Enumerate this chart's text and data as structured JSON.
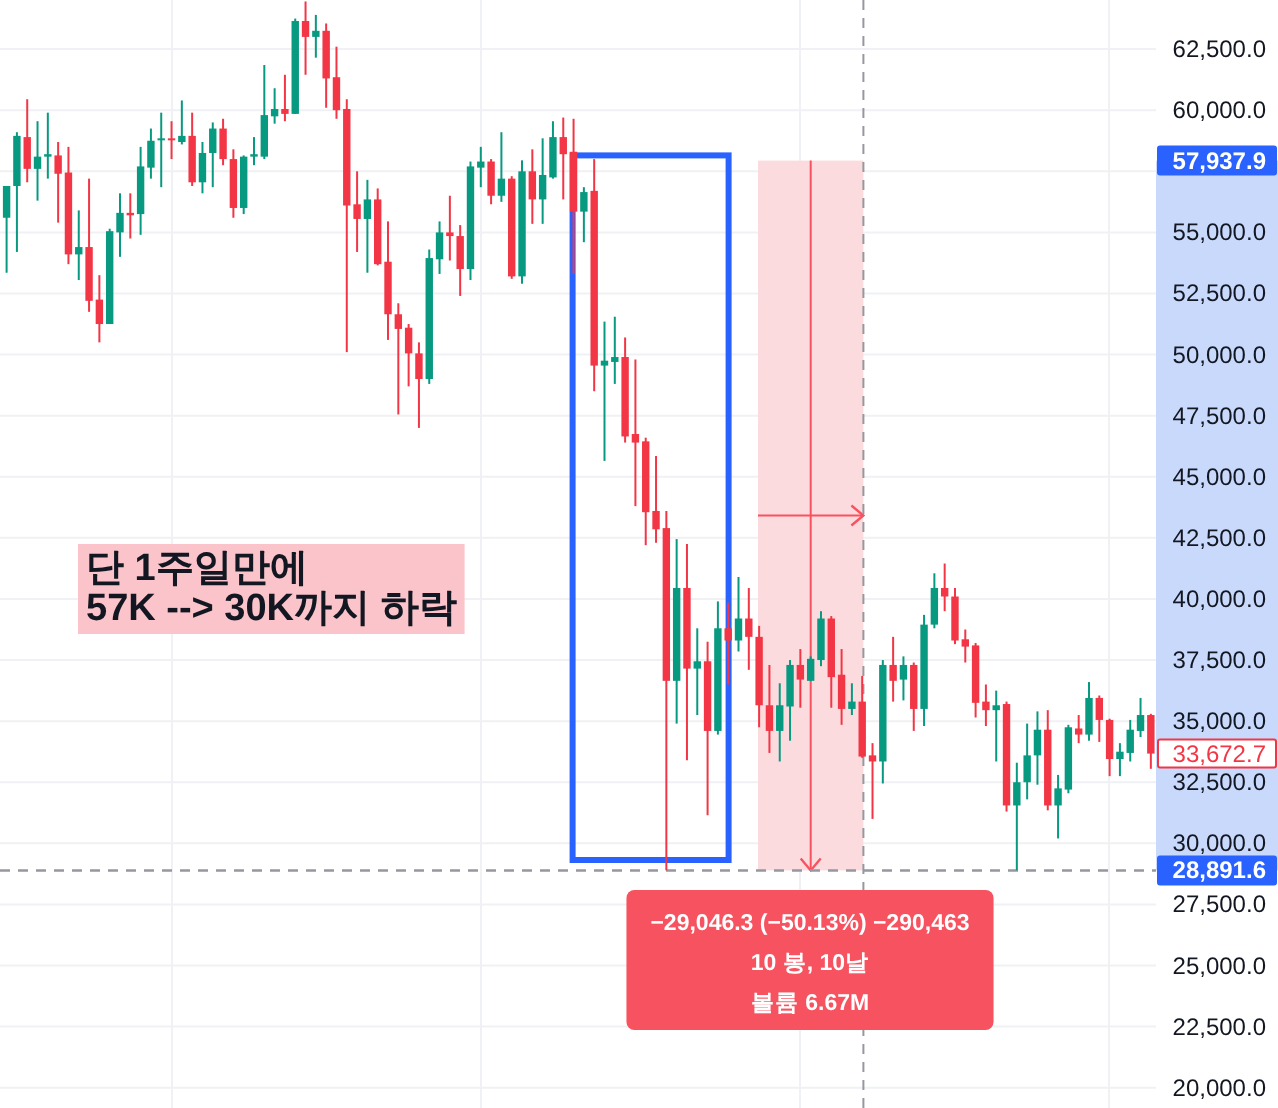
{
  "chart_data": {
    "type": "candlestick",
    "categories": [
      null,
      null,
      null,
      null,
      null,
      null,
      null,
      null,
      null,
      null,
      null,
      null,
      null,
      null,
      null,
      null,
      null,
      null,
      null,
      null,
      null,
      null,
      null,
      null,
      null,
      null,
      null,
      null,
      null,
      null,
      null,
      null,
      null,
      null,
      null,
      null,
      null,
      null,
      null,
      null,
      null,
      null,
      null,
      null,
      null,
      null,
      null,
      null,
      null,
      null,
      null,
      null,
      null,
      null,
      null,
      null,
      null,
      null,
      null,
      null,
      null,
      null,
      null,
      null,
      null,
      null,
      null,
      null,
      null,
      null,
      null,
      null,
      null,
      null,
      null,
      null,
      null,
      null,
      null,
      null,
      null,
      null,
      null,
      null,
      null,
      null,
      null,
      null,
      null,
      null,
      null,
      null,
      null,
      null,
      null,
      null,
      null,
      null,
      null,
      null,
      null,
      null,
      null,
      null,
      null,
      null,
      null,
      null,
      null,
      null,
      null,
      null
    ],
    "ohlc": [
      [
        55600,
        56900,
        53350,
        56900
      ],
      [
        56900,
        59100,
        54200,
        58950
      ],
      [
        58900,
        60450,
        57050,
        57600
      ],
      [
        57600,
        59550,
        56300,
        58100
      ],
      [
        58100,
        59900,
        57200,
        58200
      ],
      [
        58150,
        58700,
        55400,
        57400
      ],
      [
        57450,
        58500,
        53700,
        54100
      ],
      [
        54100,
        55900,
        53050,
        54400
      ],
      [
        54400,
        57200,
        51750,
        52200
      ],
      [
        52250,
        53250,
        50500,
        51250
      ],
      [
        51250,
        55150,
        51250,
        55050
      ],
      [
        55000,
        56600,
        54000,
        55800
      ],
      [
        55800,
        56600,
        54750,
        55700
      ],
      [
        55750,
        58500,
        54900,
        57700
      ],
      [
        57650,
        59250,
        57200,
        58750
      ],
      [
        58800,
        59900,
        56850,
        58850
      ],
      [
        58850,
        59550,
        58000,
        58800
      ],
      [
        58700,
        60400,
        58600,
        58950
      ],
      [
        58950,
        59900,
        56900,
        57050
      ],
      [
        57050,
        58700,
        56600,
        58250
      ],
      [
        58250,
        59500,
        56850,
        59250
      ],
      [
        59250,
        59650,
        57750,
        58000
      ],
      [
        58000,
        58400,
        55600,
        56000
      ],
      [
        56000,
        58150,
        55750,
        58100
      ],
      [
        58100,
        58900,
        57750,
        58200
      ],
      [
        58100,
        61850,
        58000,
        59800
      ],
      [
        59750,
        60900,
        59450,
        60050
      ],
      [
        60050,
        61450,
        59550,
        59850
      ],
      [
        59850,
        63750,
        59850,
        63650
      ],
      [
        63650,
        64450,
        61450,
        63000
      ],
      [
        63000,
        63900,
        62150,
        63250
      ],
      [
        63250,
        63550,
        60100,
        61300
      ],
      [
        61350,
        62600,
        59650,
        60000
      ],
      [
        60050,
        60450,
        50100,
        56100
      ],
      [
        56150,
        57500,
        54200,
        55550
      ],
      [
        55550,
        57150,
        53350,
        56350
      ],
      [
        56350,
        56800,
        53650,
        53700
      ],
      [
        53800,
        55450,
        50600,
        51650
      ],
      [
        51650,
        52100,
        47550,
        51050
      ],
      [
        51100,
        51250,
        48700,
        50050
      ],
      [
        50050,
        50500,
        47000,
        49000
      ],
      [
        49000,
        54300,
        48800,
        53950
      ],
      [
        53900,
        55450,
        53300,
        55000
      ],
      [
        55000,
        56500,
        53850,
        54850
      ],
      [
        54850,
        55300,
        52400,
        53500
      ],
      [
        53500,
        57900,
        53050,
        57700
      ],
      [
        57650,
        58500,
        56850,
        57900
      ],
      [
        57900,
        58000,
        56150,
        56500
      ],
      [
        56500,
        59100,
        56250,
        57200
      ],
      [
        57200,
        57300,
        53100,
        53200
      ],
      [
        53200,
        57950,
        52900,
        57500
      ],
      [
        57500,
        58400,
        55350,
        56350
      ],
      [
        56350,
        58850,
        55350,
        57350
      ],
      [
        57250,
        59550,
        57200,
        58900
      ],
      [
        58900,
        59700,
        56350,
        58200
      ],
      [
        58300,
        59650,
        53300,
        55850
      ],
      [
        55850,
        56850,
        54600,
        56650
      ],
      [
        56700,
        58000,
        48500,
        49550
      ],
      [
        49550,
        51350,
        45650,
        49750
      ],
      [
        49700,
        51550,
        48800,
        49900
      ],
      [
        49900,
        50700,
        46400,
        46650
      ],
      [
        46750,
        49800,
        43800,
        46400
      ],
      [
        46450,
        46600,
        42200,
        43550
      ],
      [
        43600,
        45850,
        42300,
        42850
      ],
      [
        42900,
        43600,
        28900,
        36650
      ],
      [
        36650,
        42450,
        34900,
        40450
      ],
      [
        40450,
        42250,
        33400,
        37150
      ],
      [
        37150,
        38800,
        35250,
        37450
      ],
      [
        37450,
        38250,
        31150,
        34600
      ],
      [
        34600,
        39900,
        34450,
        38800
      ],
      [
        38800,
        39850,
        36500,
        38300
      ],
      [
        38300,
        40900,
        37850,
        39200
      ],
      [
        39200,
        40450,
        37100,
        38450
      ],
      [
        38450,
        38900,
        34750,
        35650
      ],
      [
        35650,
        37300,
        33700,
        34600
      ],
      [
        34600,
        36550,
        33350,
        35650
      ],
      [
        35600,
        37500,
        34200,
        37300
      ],
      [
        37300,
        37950,
        35550,
        36700
      ],
      [
        36650,
        37650,
        36650,
        37550
      ],
      [
        37500,
        39500,
        37250,
        39200
      ],
      [
        39200,
        39300,
        35550,
        36800
      ],
      [
        36900,
        37950,
        34850,
        35500
      ],
      [
        35500,
        36550,
        35250,
        35800
      ],
      [
        35800,
        36850,
        33500,
        33550
      ],
      [
        33600,
        34100,
        31000,
        33350
      ],
      [
        33350,
        37500,
        32450,
        37300
      ],
      [
        37300,
        38450,
        35800,
        36650
      ],
      [
        36700,
        37650,
        35850,
        37300
      ],
      [
        37300,
        37400,
        34600,
        35500
      ],
      [
        35500,
        39350,
        34800,
        38950
      ],
      [
        38950,
        41050,
        38800,
        40450
      ],
      [
        40450,
        41450,
        39500,
        40100
      ],
      [
        40100,
        40450,
        38150,
        38300
      ],
      [
        38350,
        38750,
        37400,
        38050
      ],
      [
        38100,
        38200,
        35150,
        35750
      ],
      [
        35800,
        36500,
        34800,
        35450
      ],
      [
        35450,
        36250,
        33350,
        35650
      ],
      [
        35700,
        35800,
        31300,
        31550
      ],
      [
        31550,
        33300,
        28900,
        32500
      ],
      [
        32500,
        34900,
        31800,
        33600
      ],
      [
        33600,
        35400,
        32400,
        34650
      ],
      [
        34650,
        35450,
        31350,
        31550
      ],
      [
        31550,
        32800,
        30200,
        32250
      ],
      [
        32200,
        34850,
        32050,
        34750
      ],
      [
        34700,
        35250,
        34100,
        34450
      ],
      [
        34450,
        36600,
        34200,
        35950
      ],
      [
        35950,
        36050,
        34150,
        35050
      ],
      [
        35050,
        35100,
        32750,
        33450
      ],
      [
        33450,
        34100,
        32750,
        33750
      ],
      [
        33700,
        35050,
        33350,
        34650
      ],
      [
        34600,
        35950,
        34350,
        35250
      ],
      [
        35250,
        35300,
        33050,
        33672.7
      ]
    ],
    "ylim": [
      19170,
      64510
    ],
    "yticks": [
      {
        "value": 20000,
        "label": "20,000.0"
      },
      {
        "value": 22500,
        "label": "22,500.0"
      },
      {
        "value": 25000,
        "label": "25,000.0"
      },
      {
        "value": 27500,
        "label": "27,500.0"
      },
      {
        "value": 30000,
        "label": "30,000.0"
      },
      {
        "value": 32500,
        "label": "32,500.0"
      },
      {
        "value": 35000,
        "label": "35,000.0"
      },
      {
        "value": 37500,
        "label": "37,500.0"
      },
      {
        "value": 40000,
        "label": "40,000.0"
      },
      {
        "value": 42500,
        "label": "42,500.0"
      },
      {
        "value": 45000,
        "label": "45,000.0"
      },
      {
        "value": 47500,
        "label": "47,500.0"
      },
      {
        "value": 50000,
        "label": "50,000.0"
      },
      {
        "value": 52500,
        "label": "52,500.0"
      },
      {
        "value": 55000,
        "label": "55,000.0"
      },
      {
        "value": 57500,
        "label": null
      },
      {
        "value": 60000,
        "label": "60,000.0"
      },
      {
        "value": 62500,
        "label": "62,500.0"
      }
    ],
    "grid": true,
    "tick_labels": "y",
    "ref_lines": [
      {
        "axis": "y",
        "value": 28891.6,
        "label": "28,891.6",
        "color": "#9598a1",
        "line_style": "dashed"
      }
    ],
    "bands": [
      {
        "axis": "y",
        "from": 28891.6,
        "to": 57937.9,
        "color": "#fcdbde"
      }
    ],
    "annotations": [
      "단 1주일만에\n57K --> 30K까지 하락",
      "−29,046.3 (−50.13%) −290,463\n10 봉, 10날\n볼륨 6.67M",
      "57,937.9",
      "33,672.7"
    ]
  }
}
